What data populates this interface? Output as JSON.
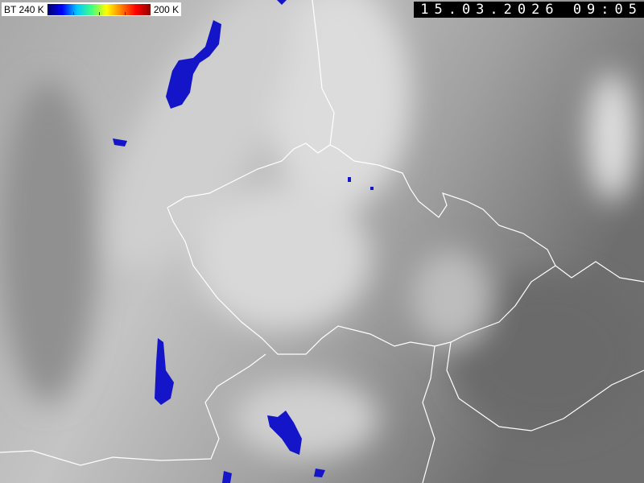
{
  "legend": {
    "label_left": "BT 240 K",
    "label_right": "200 K",
    "colors": [
      "#00006a",
      "#0000ff",
      "#00c8ff",
      "#40ff80",
      "#ffff00",
      "#ff8000",
      "#ff0000",
      "#900000"
    ]
  },
  "timestamp": "15.03.2026 09:05",
  "colors": {
    "cold_cloud": "#1010d0",
    "border": "#ffffff"
  }
}
